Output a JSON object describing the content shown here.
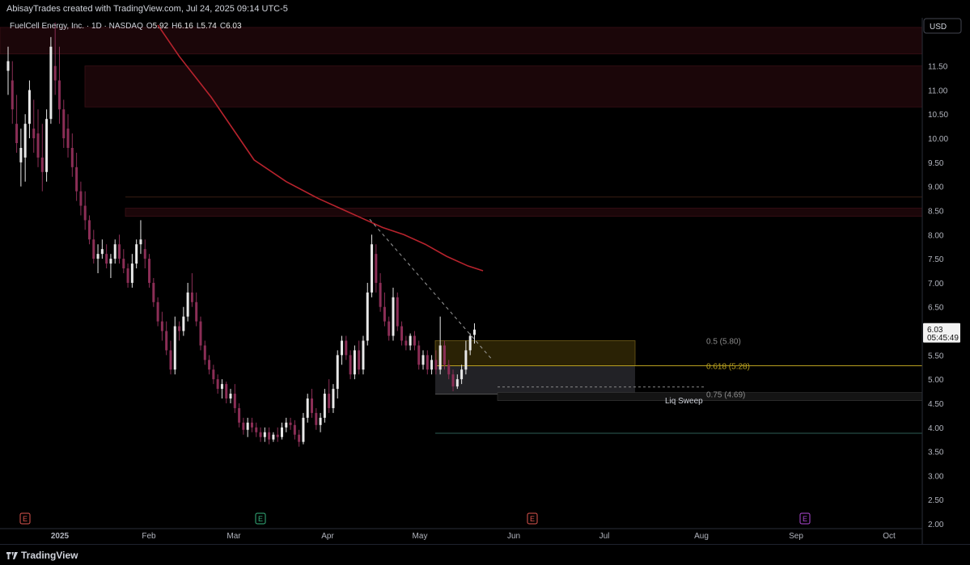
{
  "header": {
    "credit": "AbisayTrades created with TradingView.com, Jul 24, 2025 09:14 UTC-5"
  },
  "legend": {
    "symbol": "FuelCell Energy, Inc. · 1D · NASDAQ",
    "o_label": "O",
    "o_value": "5.92",
    "h_label": "H",
    "h_value": "6.16",
    "l_label": "L",
    "l_value": "5.74",
    "c_label": "C",
    "c_value": "6.03"
  },
  "currency_button": "USD",
  "brand": "TradingView",
  "colors": {
    "background": "#000000",
    "bull": "#e8e8e8",
    "bear": "#8b2e56",
    "ma": "#b7232d",
    "zone": "#1b0609",
    "fib_box": "#2a2205",
    "fib_gray": "#222226",
    "fib_line": "#b8a020"
  },
  "chart_data": {
    "type": "candlestick",
    "x_ticks": [
      "2025",
      "Feb",
      "Mar",
      "Apr",
      "May",
      "Jun",
      "Jul",
      "Aug",
      "Sep",
      "Oct"
    ],
    "y_ticks": [
      "11.50",
      "11.00",
      "10.50",
      "10.00",
      "9.50",
      "9.00",
      "8.50",
      "8.00",
      "7.50",
      "7.00",
      "6.50",
      "6.00",
      "5.50",
      "5.00",
      "4.50",
      "4.00",
      "3.50",
      "3.00",
      "2.50",
      "2.00"
    ],
    "ylim": [
      1.9,
      12.5
    ],
    "last_price": {
      "value": "6.03",
      "countdown": "05:45:49"
    },
    "fib_levels": [
      {
        "label": "0.5 (5.80)",
        "value": 5.8
      },
      {
        "label": "0.618 (5.28)",
        "value": 5.28
      },
      {
        "label": "0.75 (4.69)",
        "value": 4.69
      }
    ],
    "annotation": "Liq Sweep",
    "earnings_markers": [
      "E",
      "E",
      "E",
      "E"
    ],
    "resistance_zones": [
      [
        11.75,
        12.3
      ],
      [
        10.65,
        11.5
      ],
      [
        8.38,
        8.55
      ]
    ],
    "horizontal_lines": [
      8.78,
      5.28,
      4.69,
      3.88
    ],
    "ma_line": [
      [
        7.0,
        12.35
      ],
      [
        8.0,
        11.7
      ],
      [
        9.5,
        10.85
      ],
      [
        10.5,
        10.2
      ],
      [
        11.5,
        9.55
      ],
      [
        13.0,
        9.1
      ],
      [
        14.5,
        8.75
      ],
      [
        15.5,
        8.55
      ],
      [
        16.5,
        8.35
      ],
      [
        17.5,
        8.15
      ],
      [
        18.5,
        8.0
      ],
      [
        19.5,
        7.8
      ],
      [
        20.5,
        7.55
      ],
      [
        21.5,
        7.35
      ],
      [
        22.2,
        7.25
      ]
    ],
    "trendline": [
      [
        16.9,
        8.32
      ],
      [
        22.6,
        5.42
      ]
    ],
    "candles": [
      {
        "w": 0.0,
        "o": 11.4,
        "h": 11.9,
        "l": 10.9,
        "c": 11.6
      },
      {
        "w": 0.2,
        "o": 11.2,
        "h": 11.6,
        "l": 10.3,
        "c": 10.6
      },
      {
        "w": 0.4,
        "o": 10.3,
        "h": 10.9,
        "l": 9.7,
        "c": 9.9
      },
      {
        "w": 0.6,
        "o": 9.5,
        "h": 10.2,
        "l": 9.0,
        "c": 9.8
      },
      {
        "w": 0.8,
        "o": 9.6,
        "h": 10.5,
        "l": 9.1,
        "c": 10.3
      },
      {
        "w": 1.0,
        "o": 10.3,
        "h": 11.2,
        "l": 10.0,
        "c": 11.0
      },
      {
        "w": 1.2,
        "o": 10.2,
        "h": 10.8,
        "l": 9.7,
        "c": 10.0
      },
      {
        "w": 1.4,
        "o": 10.1,
        "h": 10.6,
        "l": 9.4,
        "c": 9.6
      },
      {
        "w": 1.6,
        "o": 9.6,
        "h": 10.3,
        "l": 8.9,
        "c": 9.3
      },
      {
        "w": 1.8,
        "o": 9.3,
        "h": 10.6,
        "l": 9.1,
        "c": 10.4
      },
      {
        "w": 2.0,
        "o": 10.4,
        "h": 12.1,
        "l": 10.3,
        "c": 11.9
      },
      {
        "w": 2.2,
        "o": 11.5,
        "h": 12.4,
        "l": 10.9,
        "c": 11.2
      },
      {
        "w": 2.4,
        "o": 11.2,
        "h": 11.9,
        "l": 10.3,
        "c": 10.6
      },
      {
        "w": 2.6,
        "o": 10.6,
        "h": 10.8,
        "l": 9.8,
        "c": 10.0
      },
      {
        "w": 2.8,
        "o": 10.2,
        "h": 10.5,
        "l": 9.6,
        "c": 9.8
      },
      {
        "w": 3.0,
        "o": 9.8,
        "h": 10.1,
        "l": 9.2,
        "c": 9.4
      },
      {
        "w": 3.2,
        "o": 9.4,
        "h": 9.7,
        "l": 8.7,
        "c": 8.9
      },
      {
        "w": 3.4,
        "o": 8.9,
        "h": 9.1,
        "l": 8.4,
        "c": 8.6
      },
      {
        "w": 3.6,
        "o": 8.6,
        "h": 8.9,
        "l": 8.1,
        "c": 8.3
      },
      {
        "w": 3.8,
        "o": 8.3,
        "h": 8.4,
        "l": 7.8,
        "c": 7.9
      },
      {
        "w": 4.0,
        "o": 7.9,
        "h": 8.1,
        "l": 7.4,
        "c": 7.5
      },
      {
        "w": 4.2,
        "o": 7.5,
        "h": 7.8,
        "l": 7.2,
        "c": 7.6
      },
      {
        "w": 4.4,
        "o": 7.6,
        "h": 7.9,
        "l": 7.5,
        "c": 7.7
      },
      {
        "w": 4.6,
        "o": 7.6,
        "h": 7.8,
        "l": 7.3,
        "c": 7.4
      },
      {
        "w": 4.8,
        "o": 7.4,
        "h": 7.6,
        "l": 7.1,
        "c": 7.5
      },
      {
        "w": 5.0,
        "o": 7.5,
        "h": 7.9,
        "l": 7.4,
        "c": 7.8
      },
      {
        "w": 5.2,
        "o": 7.8,
        "h": 8.0,
        "l": 7.4,
        "c": 7.5
      },
      {
        "w": 5.4,
        "o": 7.5,
        "h": 7.7,
        "l": 7.2,
        "c": 7.3
      },
      {
        "w": 5.6,
        "o": 7.3,
        "h": 7.4,
        "l": 6.9,
        "c": 7.0
      },
      {
        "w": 5.8,
        "o": 7.0,
        "h": 7.6,
        "l": 6.9,
        "c": 7.4
      },
      {
        "w": 6.0,
        "o": 7.4,
        "h": 7.9,
        "l": 7.3,
        "c": 7.8
      },
      {
        "w": 6.2,
        "o": 7.8,
        "h": 8.3,
        "l": 7.6,
        "c": 7.9
      },
      {
        "w": 6.4,
        "o": 7.7,
        "h": 7.9,
        "l": 7.3,
        "c": 7.5
      },
      {
        "w": 6.6,
        "o": 7.5,
        "h": 7.6,
        "l": 6.9,
        "c": 7.0
      },
      {
        "w": 6.8,
        "o": 7.0,
        "h": 7.1,
        "l": 6.5,
        "c": 6.6
      },
      {
        "w": 7.0,
        "o": 6.6,
        "h": 6.7,
        "l": 6.1,
        "c": 6.2
      },
      {
        "w": 7.2,
        "o": 6.2,
        "h": 6.4,
        "l": 5.8,
        "c": 6.0
      },
      {
        "w": 7.4,
        "o": 6.0,
        "h": 6.2,
        "l": 5.5,
        "c": 5.6
      },
      {
        "w": 7.6,
        "o": 5.6,
        "h": 5.8,
        "l": 5.1,
        "c": 5.2
      },
      {
        "w": 7.8,
        "o": 5.2,
        "h": 6.3,
        "l": 5.1,
        "c": 6.1
      },
      {
        "w": 8.0,
        "o": 6.1,
        "h": 6.2,
        "l": 5.8,
        "c": 6.0
      },
      {
        "w": 8.2,
        "o": 6.0,
        "h": 6.5,
        "l": 5.9,
        "c": 6.3
      },
      {
        "w": 8.4,
        "o": 6.3,
        "h": 7.0,
        "l": 6.2,
        "c": 6.8
      },
      {
        "w": 8.6,
        "o": 6.8,
        "h": 7.2,
        "l": 6.5,
        "c": 6.6
      },
      {
        "w": 8.8,
        "o": 6.6,
        "h": 6.8,
        "l": 6.1,
        "c": 6.2
      },
      {
        "w": 9.0,
        "o": 6.2,
        "h": 6.3,
        "l": 5.6,
        "c": 5.7
      },
      {
        "w": 9.2,
        "o": 5.7,
        "h": 5.8,
        "l": 5.3,
        "c": 5.4
      },
      {
        "w": 9.4,
        "o": 5.4,
        "h": 5.5,
        "l": 5.1,
        "c": 5.2
      },
      {
        "w": 9.6,
        "o": 5.2,
        "h": 5.3,
        "l": 4.9,
        "c": 5.0
      },
      {
        "w": 9.8,
        "o": 5.0,
        "h": 5.1,
        "l": 4.7,
        "c": 4.8
      },
      {
        "w": 10.0,
        "o": 4.8,
        "h": 5.0,
        "l": 4.6,
        "c": 4.9
      },
      {
        "w": 10.2,
        "o": 4.9,
        "h": 4.95,
        "l": 4.5,
        "c": 4.6
      },
      {
        "w": 10.4,
        "o": 4.6,
        "h": 4.8,
        "l": 4.5,
        "c": 4.7
      },
      {
        "w": 10.6,
        "o": 4.7,
        "h": 4.9,
        "l": 4.3,
        "c": 4.4
      },
      {
        "w": 10.8,
        "o": 4.4,
        "h": 4.5,
        "l": 4.0,
        "c": 4.1
      },
      {
        "w": 11.0,
        "o": 4.1,
        "h": 4.2,
        "l": 3.85,
        "c": 3.95
      },
      {
        "w": 11.2,
        "o": 3.95,
        "h": 4.2,
        "l": 3.8,
        "c": 4.1
      },
      {
        "w": 11.4,
        "o": 4.1,
        "h": 4.2,
        "l": 3.9,
        "c": 4.0
      },
      {
        "w": 11.6,
        "o": 4.0,
        "h": 4.1,
        "l": 3.8,
        "c": 3.9
      },
      {
        "w": 11.8,
        "o": 3.9,
        "h": 4.0,
        "l": 3.7,
        "c": 3.8
      },
      {
        "w": 12.0,
        "o": 3.8,
        "h": 4.0,
        "l": 3.7,
        "c": 3.9
      },
      {
        "w": 12.2,
        "o": 3.9,
        "h": 4.0,
        "l": 3.65,
        "c": 3.75
      },
      {
        "w": 12.4,
        "o": 3.75,
        "h": 3.9,
        "l": 3.7,
        "c": 3.85
      },
      {
        "w": 12.6,
        "o": 3.85,
        "h": 4.0,
        "l": 3.7,
        "c": 3.8
      },
      {
        "w": 12.8,
        "o": 3.8,
        "h": 4.1,
        "l": 3.75,
        "c": 4.0
      },
      {
        "w": 13.0,
        "o": 4.0,
        "h": 4.2,
        "l": 3.9,
        "c": 4.1
      },
      {
        "w": 13.2,
        "o": 4.1,
        "h": 4.2,
        "l": 3.95,
        "c": 4.05
      },
      {
        "w": 13.4,
        "o": 4.05,
        "h": 4.15,
        "l": 3.75,
        "c": 3.85
      },
      {
        "w": 13.6,
        "o": 3.85,
        "h": 3.95,
        "l": 3.6,
        "c": 3.7
      },
      {
        "w": 13.8,
        "o": 3.7,
        "h": 4.3,
        "l": 3.65,
        "c": 4.2
      },
      {
        "w": 14.0,
        "o": 4.2,
        "h": 4.7,
        "l": 4.1,
        "c": 4.6
      },
      {
        "w": 14.2,
        "o": 4.6,
        "h": 4.8,
        "l": 4.2,
        "c": 4.3
      },
      {
        "w": 14.4,
        "o": 4.3,
        "h": 4.4,
        "l": 3.95,
        "c": 4.05
      },
      {
        "w": 14.6,
        "o": 4.05,
        "h": 4.3,
        "l": 3.9,
        "c": 4.2
      },
      {
        "w": 14.8,
        "o": 4.2,
        "h": 4.8,
        "l": 4.1,
        "c": 4.7
      },
      {
        "w": 15.0,
        "o": 4.7,
        "h": 5.0,
        "l": 4.3,
        "c": 4.4
      },
      {
        "w": 15.2,
        "o": 4.4,
        "h": 4.9,
        "l": 4.3,
        "c": 4.8
      },
      {
        "w": 15.4,
        "o": 4.8,
        "h": 5.6,
        "l": 4.6,
        "c": 5.5
      },
      {
        "w": 15.6,
        "o": 5.5,
        "h": 5.9,
        "l": 5.3,
        "c": 5.8
      },
      {
        "w": 15.8,
        "o": 5.8,
        "h": 5.9,
        "l": 5.4,
        "c": 5.5
      },
      {
        "w": 16.0,
        "o": 5.5,
        "h": 5.6,
        "l": 5.0,
        "c": 5.1
      },
      {
        "w": 16.2,
        "o": 5.1,
        "h": 5.7,
        "l": 5.0,
        "c": 5.6
      },
      {
        "w": 16.4,
        "o": 5.6,
        "h": 5.8,
        "l": 5.1,
        "c": 5.2
      },
      {
        "w": 16.6,
        "o": 5.2,
        "h": 5.9,
        "l": 5.1,
        "c": 5.8
      },
      {
        "w": 16.8,
        "o": 5.8,
        "h": 7.0,
        "l": 5.7,
        "c": 6.8
      },
      {
        "w": 17.0,
        "o": 6.8,
        "h": 8.0,
        "l": 6.7,
        "c": 7.8
      },
      {
        "w": 17.2,
        "o": 7.6,
        "h": 7.8,
        "l": 6.8,
        "c": 7.0
      },
      {
        "w": 17.4,
        "o": 7.0,
        "h": 7.2,
        "l": 6.4,
        "c": 6.5
      },
      {
        "w": 17.6,
        "o": 6.5,
        "h": 6.8,
        "l": 6.1,
        "c": 6.2
      },
      {
        "w": 17.8,
        "o": 6.2,
        "h": 6.3,
        "l": 5.8,
        "c": 5.9
      },
      {
        "w": 18.0,
        "o": 5.9,
        "h": 6.9,
        "l": 5.8,
        "c": 6.7
      },
      {
        "w": 18.2,
        "o": 6.7,
        "h": 6.8,
        "l": 6.0,
        "c": 6.1
      },
      {
        "w": 18.4,
        "o": 6.1,
        "h": 6.2,
        "l": 5.7,
        "c": 5.8
      },
      {
        "w": 18.6,
        "o": 5.8,
        "h": 5.9,
        "l": 5.6,
        "c": 5.7
      },
      {
        "w": 18.8,
        "o": 5.7,
        "h": 5.95,
        "l": 5.6,
        "c": 5.9
      },
      {
        "w": 19.0,
        "o": 5.9,
        "h": 6.0,
        "l": 5.6,
        "c": 5.7
      },
      {
        "w": 19.2,
        "o": 5.7,
        "h": 5.8,
        "l": 5.2,
        "c": 5.3
      },
      {
        "w": 19.4,
        "o": 5.3,
        "h": 5.6,
        "l": 5.2,
        "c": 5.5
      },
      {
        "w": 19.6,
        "o": 5.5,
        "h": 5.6,
        "l": 5.1,
        "c": 5.2
      },
      {
        "w": 19.8,
        "o": 5.2,
        "h": 5.5,
        "l": 5.1,
        "c": 5.4
      },
      {
        "w": 20.0,
        "o": 5.4,
        "h": 5.6,
        "l": 5.1,
        "c": 5.2
      },
      {
        "w": 20.2,
        "o": 5.2,
        "h": 6.3,
        "l": 5.1,
        "c": 5.7
      },
      {
        "w": 20.4,
        "o": 5.7,
        "h": 5.8,
        "l": 5.2,
        "c": 5.3
      },
      {
        "w": 20.6,
        "o": 5.3,
        "h": 5.4,
        "l": 5.0,
        "c": 5.1
      },
      {
        "w": 20.8,
        "o": 5.1,
        "h": 5.2,
        "l": 4.75,
        "c": 4.85
      },
      {
        "w": 21.0,
        "o": 4.85,
        "h": 5.1,
        "l": 4.8,
        "c": 5.0
      },
      {
        "w": 21.2,
        "o": 5.0,
        "h": 5.3,
        "l": 4.9,
        "c": 5.2
      },
      {
        "w": 21.4,
        "o": 5.2,
        "h": 5.8,
        "l": 5.1,
        "c": 5.6
      },
      {
        "w": 21.6,
        "o": 5.6,
        "h": 5.95,
        "l": 5.5,
        "c": 5.9
      },
      {
        "w": 21.8,
        "o": 5.92,
        "h": 6.16,
        "l": 5.74,
        "c": 6.03
      }
    ]
  }
}
